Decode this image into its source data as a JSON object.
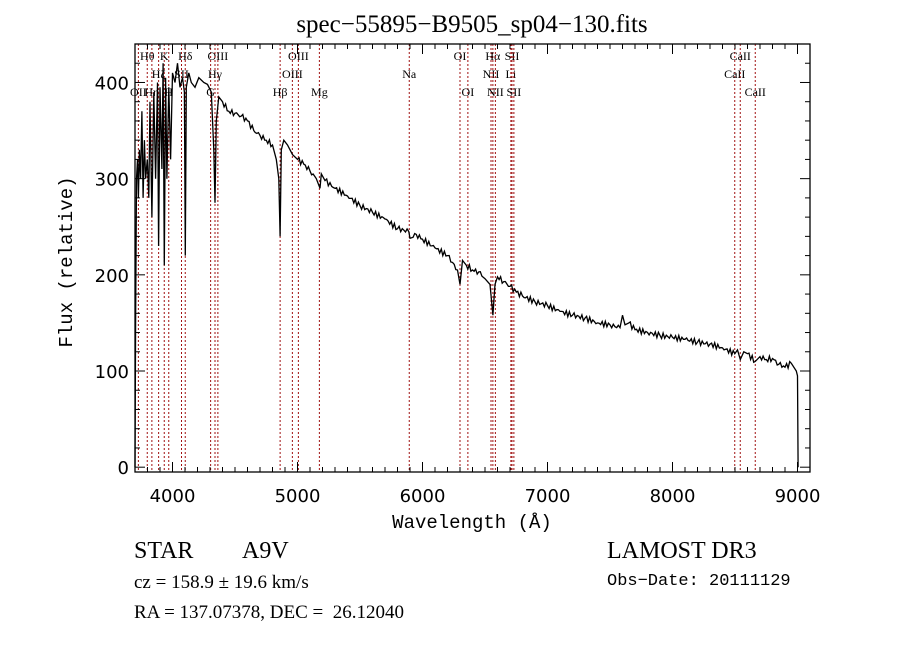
{
  "chart_data": {
    "type": "line",
    "title": "spec−55895−B9505_sp04−130.fits",
    "xlabel": "Wavelength (Å)",
    "ylabel": "Flux (relative)",
    "xlim": [
      3700,
      9100
    ],
    "ylim": [
      -5,
      440
    ],
    "xticks": [
      4000,
      5000,
      6000,
      7000,
      8000,
      9000
    ],
    "xtick_labels": [
      "4000",
      "5000",
      "6000",
      "7000",
      "8000",
      "9000"
    ],
    "yticks": [
      0,
      100,
      200,
      300,
      400
    ],
    "ytick_labels": [
      "0",
      "100",
      "200",
      "300",
      "400"
    ],
    "grid": false,
    "line_color": "#000000",
    "marker_color": "#a01010",
    "series": [
      {
        "name": "spectrum",
        "x": [
          3700,
          3705,
          3712,
          3720,
          3727,
          3735,
          3745,
          3755,
          3765,
          3775,
          3785,
          3798,
          3810,
          3820,
          3835,
          3850,
          3865,
          3880,
          3889,
          3900,
          3915,
          3925,
          3934,
          3945,
          3955,
          3970,
          3985,
          4000,
          4020,
          4040,
          4060,
          4080,
          4095,
          4102,
          4110,
          4130,
          4150,
          4180,
          4210,
          4250,
          4280,
          4310,
          4330,
          4340,
          4350,
          4370,
          4400,
          4450,
          4500,
          4550,
          4600,
          4650,
          4700,
          4750,
          4800,
          4830,
          4850,
          4861,
          4870,
          4890,
          4920,
          4960,
          5000,
          5050,
          5100,
          5150,
          5180,
          5190,
          5220,
          5300,
          5400,
          5500,
          5600,
          5700,
          5800,
          5890,
          5900,
          5950,
          6000,
          6100,
          6200,
          6280,
          6300,
          6320,
          6350,
          6400,
          6450,
          6500,
          6540,
          6563,
          6580,
          6600,
          6650,
          6700,
          6750,
          6800,
          6900,
          7000,
          7100,
          7200,
          7300,
          7400,
          7500,
          7580,
          7600,
          7620,
          7650,
          7700,
          7800,
          7900,
          8000,
          8100,
          8200,
          8300,
          8400,
          8498,
          8520,
          8542,
          8570,
          8600,
          8662,
          8700,
          8750,
          8800,
          8850,
          8900,
          8950,
          8990,
          9000,
          9005
        ],
        "y": [
          0,
          150,
          300,
          320,
          280,
          330,
          300,
          370,
          280,
          340,
          300,
          320,
          280,
          380,
          260,
          390,
          300,
          400,
          230,
          395,
          310,
          420,
          210,
          405,
          300,
          395,
          320,
          410,
          400,
          420,
          395,
          405,
          390,
          220,
          395,
          410,
          400,
          395,
          405,
          400,
          398,
          390,
          330,
          275,
          360,
          385,
          380,
          370,
          368,
          365,
          360,
          350,
          345,
          340,
          335,
          320,
          300,
          240,
          330,
          340,
          335,
          325,
          320,
          315,
          308,
          300,
          290,
          305,
          298,
          290,
          282,
          272,
          265,
          258,
          248,
          245,
          238,
          242,
          237,
          228,
          220,
          205,
          190,
          215,
          210,
          205,
          203,
          196,
          190,
          158,
          190,
          198,
          193,
          188,
          182,
          178,
          172,
          168,
          162,
          158,
          155,
          150,
          148,
          145,
          158,
          148,
          150,
          143,
          140,
          137,
          135,
          133,
          130,
          128,
          124,
          118,
          122,
          112,
          120,
          118,
          110,
          115,
          112,
          113,
          107,
          104,
          108,
          100,
          95,
          0
        ]
      }
    ],
    "line_markers": [
      {
        "name": "OII",
        "wavelength": 3727,
        "row": 2
      },
      {
        "name": "Hθ",
        "wavelength": 3798,
        "row": 0
      },
      {
        "name": "Hη",
        "wavelength": 3835,
        "row": 2
      },
      {
        "name": "Hζ",
        "wavelength": 3889,
        "row": 1
      },
      {
        "name": "K",
        "wavelength": 3934,
        "row": 0
      },
      {
        "name": "H",
        "wavelength": 3970,
        "row": 2
      },
      {
        "name": "Hδ",
        "wavelength": 4102,
        "row": 0
      },
      {
        "name": "SII",
        "wavelength": 4072,
        "row": 1
      },
      {
        "name": "G",
        "wavelength": 4305,
        "row": 2
      },
      {
        "name": "OIII",
        "wavelength": 4363,
        "row": 0
      },
      {
        "name": "Hγ",
        "wavelength": 4340,
        "row": 1
      },
      {
        "name": "Hβ",
        "wavelength": 4861,
        "row": 2
      },
      {
        "name": "OIII",
        "wavelength": 4959,
        "row": 1
      },
      {
        "name": "OIII",
        "wavelength": 5007,
        "row": 0
      },
      {
        "name": "Mg",
        "wavelength": 5175,
        "row": 2
      },
      {
        "name": "Na",
        "wavelength": 5894,
        "row": 1
      },
      {
        "name": "OI",
        "wavelength": 6300,
        "row": 0
      },
      {
        "name": "OI",
        "wavelength": 6363,
        "row": 2
      },
      {
        "name": "NII",
        "wavelength": 6548,
        "row": 1
      },
      {
        "name": "Hα",
        "wavelength": 6563,
        "row": 0
      },
      {
        "name": "NII",
        "wavelength": 6583,
        "row": 2
      },
      {
        "name": "Li",
        "wavelength": 6707,
        "row": 1
      },
      {
        "name": "SII",
        "wavelength": 6716,
        "row": 0
      },
      {
        "name": "SII",
        "wavelength": 6731,
        "row": 2
      },
      {
        "name": "CaII",
        "wavelength": 8498,
        "row": 1
      },
      {
        "name": "CaII",
        "wavelength": 8542,
        "row": 0
      },
      {
        "name": "CaII",
        "wavelength": 8662,
        "row": 2
      }
    ]
  },
  "info": {
    "object_class": "STAR",
    "subclass": "A9V",
    "redshift_line": "cz = 158.9 ± 19.6 km/s",
    "coords_line": "RA = 137.07378, DEC =  26.12040",
    "survey": "LAMOST DR3",
    "obs_date_line": "Obs−Date: 20111129"
  }
}
